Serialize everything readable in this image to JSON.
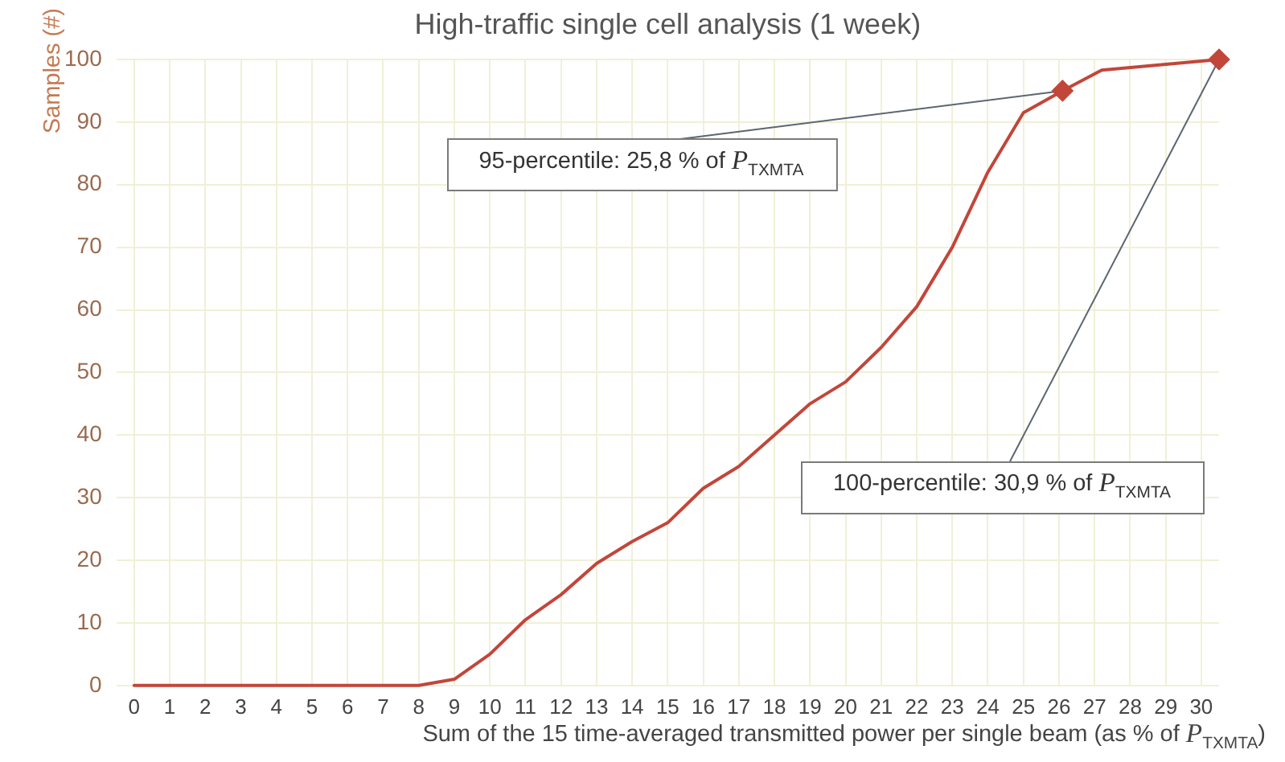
{
  "chart_data": {
    "type": "line",
    "title": "High-traffic single cell analysis (1 week)",
    "xlabel": "Sum of the 15 time-averaged transmitted power per single beam (as % of P$_{TXMTA}$)",
    "ylabel": "Samples (#)",
    "series": [
      {
        "type": "line",
        "color": "#c2463a",
        "marker": "none",
        "x": [
          0,
          8,
          9,
          10,
          11,
          12,
          13,
          14,
          15,
          16,
          17,
          18,
          19,
          20,
          21,
          22,
          23,
          24,
          25,
          26.1,
          27.2,
          30.5
        ],
        "values": [
          0,
          0,
          1,
          5,
          10.5,
          14.5,
          19.5,
          23,
          26,
          31.5,
          35,
          40,
          45,
          48.5,
          54,
          60.5,
          70,
          82,
          91.5,
          95,
          98.3,
          100
        ]
      },
      {
        "type": "scatter",
        "color": "#c2463a",
        "marker": "diamond",
        "x": [
          26.1,
          30.5
        ],
        "values": [
          95,
          100
        ]
      }
    ],
    "xlim": [
      -0.5,
      30.5
    ],
    "xticks": [
      0,
      1,
      2,
      3,
      4,
      5,
      6,
      7,
      8,
      9,
      10,
      11,
      12,
      13,
      14,
      15,
      16,
      17,
      18,
      19,
      20,
      21,
      22,
      23,
      24,
      25,
      26,
      27,
      28,
      29,
      30
    ],
    "ylim": [
      0,
      100
    ],
    "yticks": [
      0,
      10,
      20,
      30,
      40,
      50,
      60,
      70,
      80,
      90,
      100
    ],
    "grid": true,
    "annotations": [
      {
        "text": "95-percentile: 25,8 % of P$_{TXMTA}$",
        "x": 26.1,
        "y": 95
      },
      {
        "text": "100-percentile: 30,9 % of P$_{TXMTA}$",
        "x": 30.5,
        "y": 100
      }
    ]
  }
}
